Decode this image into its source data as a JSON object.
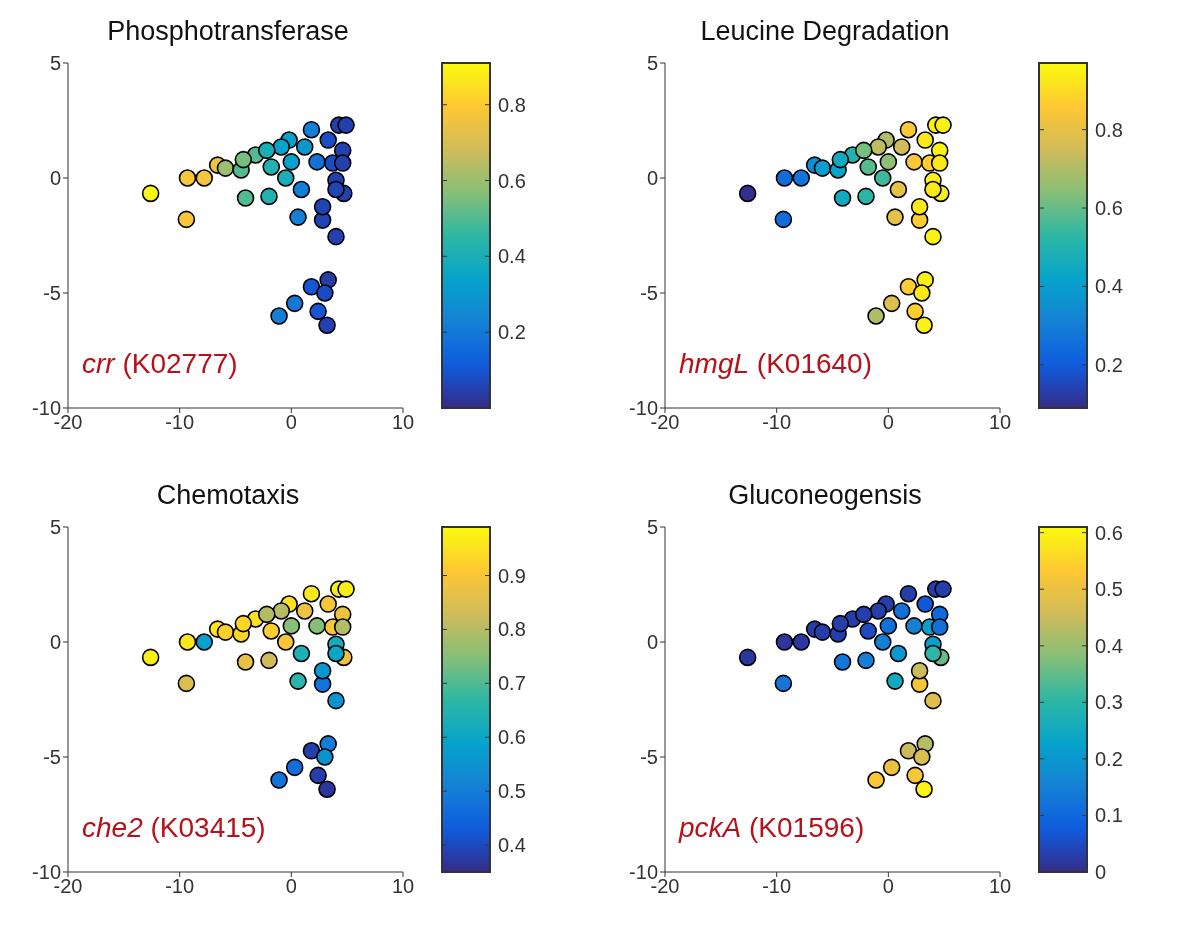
{
  "chart_data": [
    {
      "type": "scatter",
      "title": "Phosphotransferase",
      "marker": "circle",
      "xlim": [
        -20,
        10
      ],
      "xticks": [
        -20,
        -10,
        0,
        10
      ],
      "ylim": [
        -10,
        5
      ],
      "yticks": [
        -10,
        -5,
        0,
        5
      ],
      "clim": [
        0,
        0.91
      ],
      "cticks": [
        0.2,
        0.4,
        0.6,
        0.8
      ],
      "annotations": [
        "crr (K02777)"
      ],
      "x": [
        -12.6,
        -9.4,
        -9.3,
        -7.8,
        -6.6,
        -5.9,
        -4.5,
        -3.2,
        -4.1,
        -2.0,
        -1.8,
        -0.5,
        -0.2,
        0,
        0.9,
        0.6,
        1.8,
        2.3,
        2.8,
        4.0,
        4.25,
        4.9,
        3.3,
        4.6,
        4.0,
        4.7,
        2.8,
        3.7,
        -0.9,
        -2.2,
        -4.3,
        3.3,
        1.8,
        3.0,
        0.3,
        -1.1,
        2.4,
        3.2,
        1.2,
        4.6,
        4.0
      ],
      "values": [
        -0.67,
        -1.8,
        0,
        0,
        0.56,
        0.43,
        0.35,
        1.0,
        -0.87,
        -0.8,
        0.48,
        0,
        1.65,
        0.7,
        -0.5,
        -1.7,
        2.1,
        0.7,
        -1.83,
        -2.55,
        2.3,
        2.3,
        1.65,
        1.2,
        -0.1,
        -0.67,
        -1.25,
        0.65,
        1.35,
        1.2,
        0.8,
        -4.43,
        -4.73,
        -5.0,
        -5.45,
        -6.0,
        -5.8,
        -6.4,
        1.35,
        0.65,
        -0.5
      ],
      "cvalues": [
        0.9,
        0.78,
        0.78,
        0.77,
        0.75,
        0.6,
        0.5,
        0.5,
        0.5,
        0.42,
        0.42,
        0.4,
        0.33,
        0.33,
        0.22,
        0.22,
        0.22,
        0.18,
        0.06,
        0.05,
        0.05,
        0.05,
        0.08,
        0.05,
        0.05,
        0.05,
        0.06,
        0.08,
        0.33,
        0.4,
        0.55,
        0.04,
        0.1,
        0.08,
        0.2,
        0.22,
        0.1,
        0.05,
        0.3,
        0.05,
        0.06
      ]
    },
    {
      "type": "scatter",
      "title": "Leucine Degradation",
      "marker": "circle",
      "xlim": [
        -20,
        10
      ],
      "xticks": [
        -20,
        -10,
        0,
        10
      ],
      "ylim": [
        -10,
        5
      ],
      "yticks": [
        -10,
        -5,
        0,
        5
      ],
      "clim": [
        0.09,
        0.97
      ],
      "cticks": [
        0.2,
        0.4,
        0.6,
        0.8
      ],
      "annotations": [
        "hmgL (K01640)"
      ],
      "x": [
        -12.6,
        -9.4,
        -9.3,
        -7.8,
        -6.6,
        -5.9,
        -4.5,
        -3.2,
        -4.1,
        -2.0,
        -1.8,
        -0.5,
        -0.2,
        0,
        0.9,
        0.6,
        1.8,
        2.3,
        2.8,
        4.0,
        4.25,
        4.9,
        3.3,
        4.6,
        4.0,
        4.7,
        2.8,
        3.7,
        -0.9,
        -2.2,
        -4.3,
        3.3,
        1.8,
        3.0,
        0.3,
        -1.1,
        2.4,
        3.2,
        1.2,
        4.6,
        4.0
      ],
      "values": [
        -0.67,
        -1.8,
        0,
        0,
        0.56,
        0.43,
        0.35,
        1.0,
        -0.87,
        -0.8,
        0.48,
        0,
        1.65,
        0.7,
        -0.5,
        -1.7,
        2.1,
        0.7,
        -1.83,
        -2.55,
        2.3,
        2.3,
        1.65,
        1.2,
        -0.1,
        -0.67,
        -1.25,
        0.65,
        1.35,
        1.2,
        0.8,
        -4.43,
        -4.73,
        -5.0,
        -5.45,
        -6.0,
        -5.8,
        -6.4,
        1.35,
        0.65,
        -0.5
      ],
      "cvalues": [
        0.1,
        0.25,
        0.25,
        0.27,
        0.35,
        0.4,
        0.42,
        0.5,
        0.45,
        0.52,
        0.58,
        0.55,
        0.7,
        0.65,
        0.8,
        0.8,
        0.85,
        0.85,
        0.87,
        0.95,
        0.95,
        0.95,
        0.93,
        0.95,
        0.95,
        0.95,
        0.93,
        0.87,
        0.72,
        0.62,
        0.45,
        0.95,
        0.87,
        0.93,
        0.78,
        0.7,
        0.87,
        0.95,
        0.75,
        0.93,
        0.93
      ]
    },
    {
      "type": "scatter",
      "title": "Chemotaxis",
      "marker": "circle",
      "xlim": [
        -20,
        10
      ],
      "xticks": [
        -20,
        -10,
        0,
        10
      ],
      "ylim": [
        -10,
        5
      ],
      "yticks": [
        -10,
        -5,
        0,
        5
      ],
      "clim": [
        0.35,
        0.99
      ],
      "cticks": [
        0.4,
        0.5,
        0.6,
        0.7,
        0.8,
        0.9
      ],
      "annotations": [
        "che2 (K03415)"
      ],
      "x": [
        -12.6,
        -9.4,
        -9.3,
        -7.8,
        -6.6,
        -5.9,
        -4.5,
        -3.2,
        -4.1,
        -2.0,
        -1.8,
        -0.5,
        -0.2,
        0,
        0.9,
        0.6,
        1.8,
        2.3,
        2.8,
        4.0,
        4.25,
        4.9,
        3.3,
        4.6,
        4.0,
        4.7,
        2.8,
        3.7,
        -0.9,
        -2.2,
        -4.3,
        3.3,
        1.8,
        3.0,
        0.3,
        -1.1,
        2.4,
        3.2,
        1.2,
        4.6,
        4.0
      ],
      "values": [
        -0.67,
        -1.8,
        0,
        0,
        0.56,
        0.43,
        0.35,
        1.0,
        -0.87,
        -0.8,
        0.48,
        0,
        1.65,
        0.7,
        -0.5,
        -1.7,
        2.1,
        0.7,
        -1.83,
        -2.55,
        2.3,
        2.3,
        1.65,
        1.2,
        -0.1,
        -0.67,
        -1.25,
        0.65,
        1.35,
        1.2,
        0.8,
        -4.43,
        -4.73,
        -5.0,
        -5.45,
        -6.0,
        -5.8,
        -6.4,
        1.35,
        0.65,
        -0.5
      ],
      "cvalues": [
        0.97,
        0.85,
        0.96,
        0.58,
        0.95,
        0.92,
        0.93,
        0.95,
        0.87,
        0.83,
        0.92,
        0.9,
        0.95,
        0.75,
        0.64,
        0.66,
        0.96,
        0.75,
        0.48,
        0.55,
        0.97,
        0.97,
        0.9,
        0.88,
        0.62,
        0.88,
        0.56,
        0.9,
        0.8,
        0.8,
        0.93,
        0.5,
        0.38,
        0.55,
        0.47,
        0.48,
        0.38,
        0.37,
        0.88,
        0.8,
        0.6
      ]
    },
    {
      "type": "scatter",
      "title": "Gluconeogensis",
      "marker": "circle",
      "xlim": [
        -20,
        10
      ],
      "xticks": [
        -20,
        -10,
        0,
        10
      ],
      "ylim": [
        -10,
        5
      ],
      "yticks": [
        -10,
        -5,
        0,
        5
      ],
      "clim": [
        0,
        0.61
      ],
      "cticks": [
        0,
        0.1,
        0.2,
        0.3,
        0.4,
        0.5,
        0.6
      ],
      "annotations": [
        "pckA (K01596)"
      ],
      "x": [
        -12.6,
        -9.4,
        -9.3,
        -7.8,
        -6.6,
        -5.9,
        -4.5,
        -3.2,
        -4.1,
        -2.0,
        -1.8,
        -0.5,
        -0.2,
        0,
        0.9,
        0.6,
        1.8,
        2.3,
        2.8,
        4.0,
        4.25,
        4.9,
        3.3,
        4.6,
        4.0,
        4.7,
        2.8,
        3.7,
        -0.9,
        -2.2,
        -4.3,
        3.3,
        1.8,
        3.0,
        0.3,
        -1.1,
        2.4,
        3.2,
        1.2,
        4.6,
        4.0
      ],
      "values": [
        -0.67,
        -1.8,
        0,
        0,
        0.56,
        0.43,
        0.35,
        1.0,
        -0.87,
        -0.8,
        0.48,
        0,
        1.65,
        0.7,
        -0.5,
        -1.7,
        2.1,
        0.7,
        -1.83,
        -2.55,
        2.3,
        2.3,
        1.65,
        1.2,
        -0.1,
        -0.67,
        -1.25,
        0.65,
        1.35,
        1.2,
        0.8,
        -4.43,
        -4.73,
        -5.0,
        -5.45,
        -6.0,
        -5.8,
        -6.4,
        1.35,
        0.65,
        -0.5
      ],
      "cvalues": [
        0.02,
        0.13,
        0.02,
        0.02,
        0.03,
        0.03,
        0.03,
        0.03,
        0.13,
        0.15,
        0.05,
        0.15,
        0.03,
        0.12,
        0.2,
        0.25,
        0.03,
        0.15,
        0.52,
        0.48,
        0.03,
        0.03,
        0.07,
        0.1,
        0.22,
        0.35,
        0.45,
        0.22,
        0.03,
        0.03,
        0.03,
        0.43,
        0.45,
        0.47,
        0.5,
        0.53,
        0.52,
        0.6,
        0.12,
        0.12,
        0.3
      ]
    }
  ]
}
